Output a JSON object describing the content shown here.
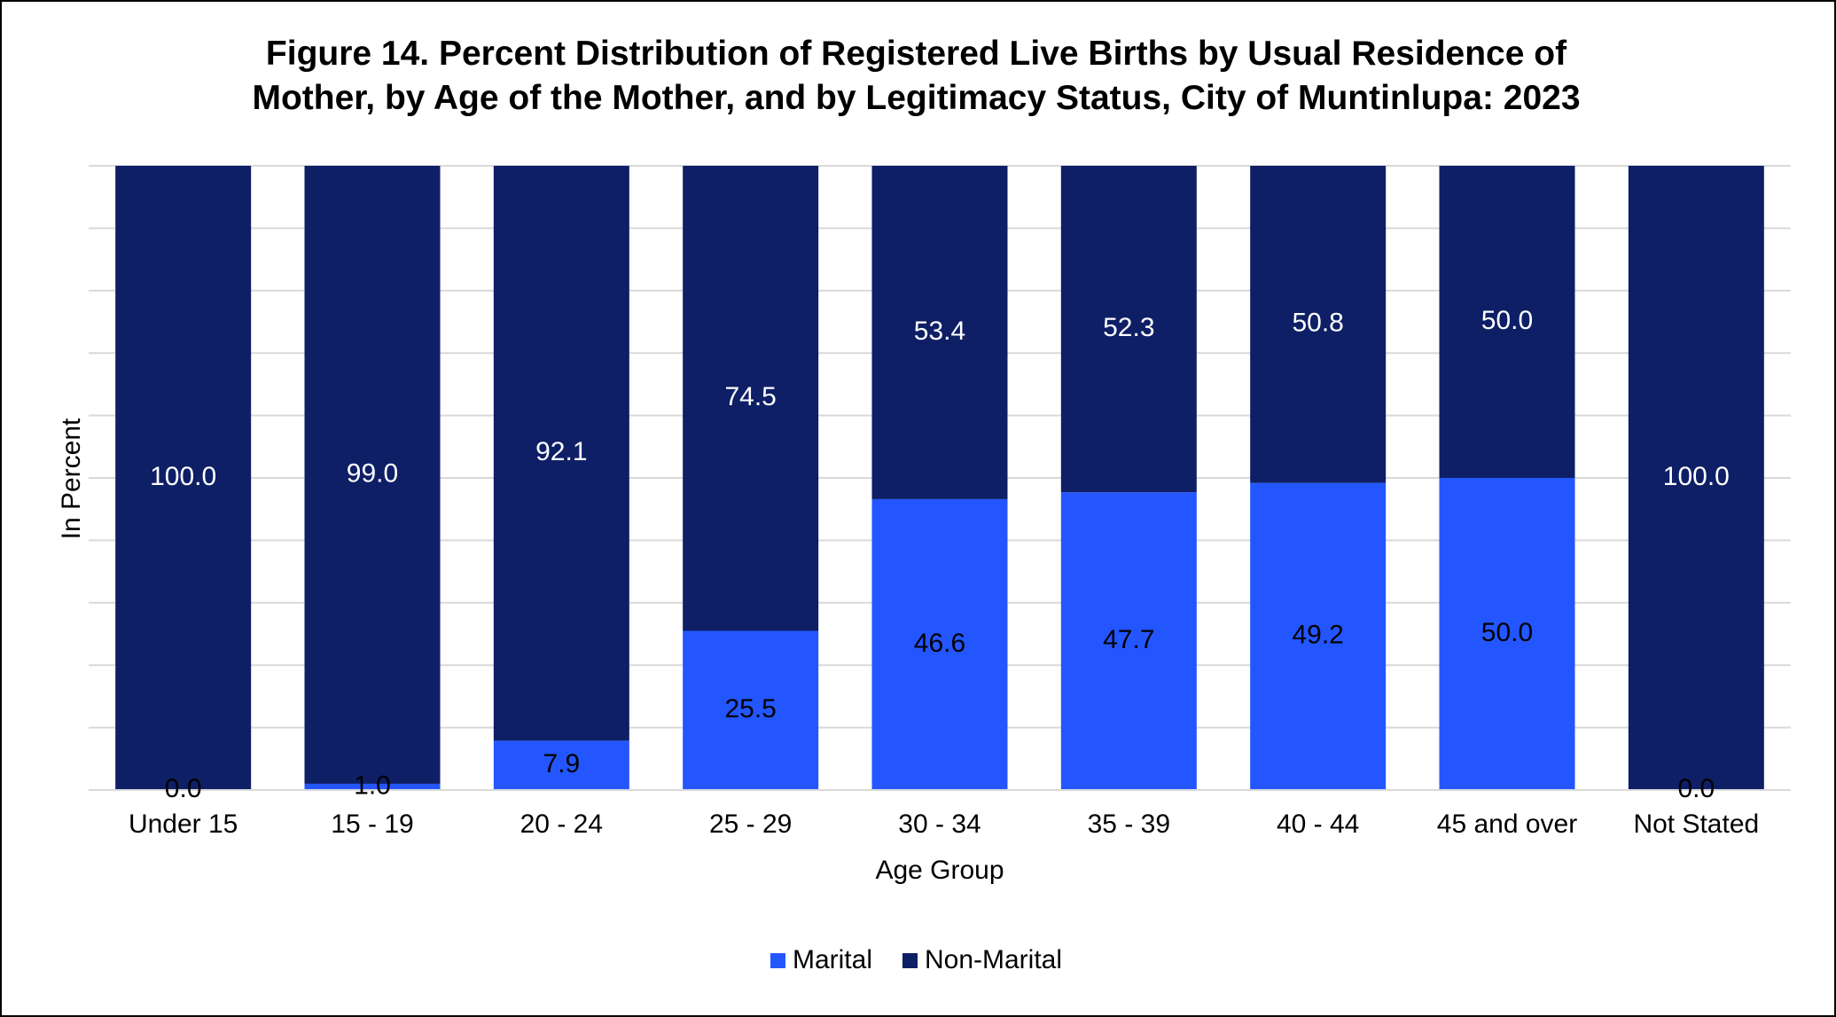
{
  "title_line1": "Figure 14. Percent Distribution of Registered Live Births by Usual Residence of",
  "title_line2": "Mother, by Age of the Mother, and by Legitimacy Status, City of Muntinlupa: 2023",
  "colors": {
    "marital": "#2356FF",
    "non_marital": "#0E1F66",
    "gridline": "#D9D9D9",
    "label_on_dark": "#FFFFFF",
    "label_on_light": "#000000"
  },
  "chart_data": {
    "type": "bar",
    "stacked": true,
    "percent_stacked": true,
    "title": "Figure 14. Percent Distribution of Registered Live Births by Usual Residence of Mother, by Age of the Mother, and by Legitimacy Status, City of Muntinlupa: 2023",
    "xlabel": "Age Group",
    "ylabel": "In Percent",
    "ylim": [
      0,
      100
    ],
    "grid": true,
    "legend_position": "bottom",
    "categories": [
      "Under 15",
      "15 - 19",
      "20 - 24",
      "25 - 29",
      "30 - 34",
      "35 - 39",
      "40 - 44",
      "45 and over",
      "Not Stated"
    ],
    "series": [
      {
        "name": "Marital",
        "values": [
          0.0,
          1.0,
          7.9,
          25.5,
          46.6,
          47.7,
          49.2,
          50.0,
          0.0
        ],
        "labels": [
          "0.0",
          "1.0",
          "7.9",
          "25.5",
          "46.6",
          "47.7",
          "49.2",
          "50.0",
          "0.0"
        ]
      },
      {
        "name": "Non-Marital",
        "values": [
          100.0,
          99.0,
          92.1,
          74.5,
          53.4,
          52.3,
          50.8,
          50.0,
          100.0
        ],
        "labels": [
          "100.0",
          "99.0",
          "92.1",
          "74.5",
          "53.4",
          "52.3",
          "50.8",
          "50.0",
          "100.0"
        ]
      }
    ]
  }
}
